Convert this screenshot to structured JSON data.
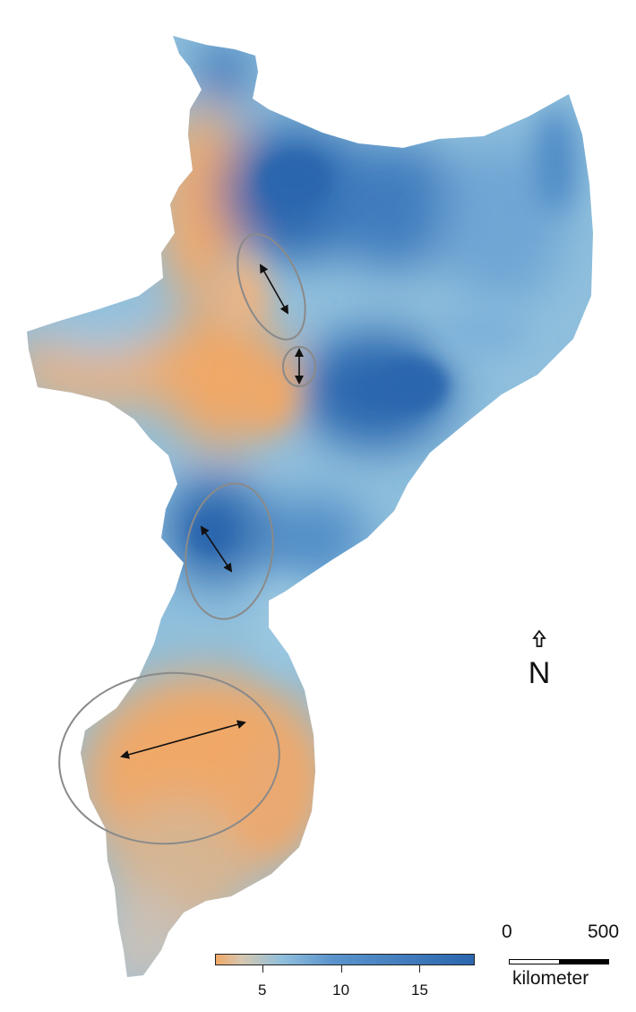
{
  "colors": {
    "low": "#f0a867",
    "mid_low": "#d6c7b0",
    "mid": "#8fbfdc",
    "high_mid": "#5b94cc",
    "high": "#2b66ae",
    "ellipse": "#8a8a8a",
    "arrow": "#111111"
  },
  "north_arrow": {
    "label": "N",
    "icon": "north-arrow-icon"
  },
  "scale_bar": {
    "tick_start": "0",
    "tick_end": "500",
    "unit": "kilometer"
  },
  "colorbar": {
    "min": 2,
    "max": 18.5,
    "ticks": [
      {
        "value": 5,
        "label": "5"
      },
      {
        "value": 10,
        "label": "10"
      },
      {
        "value": 15,
        "label": "15"
      }
    ]
  },
  "annotations": {
    "count": 4,
    "shape": "ellipse with double-headed arrow"
  }
}
